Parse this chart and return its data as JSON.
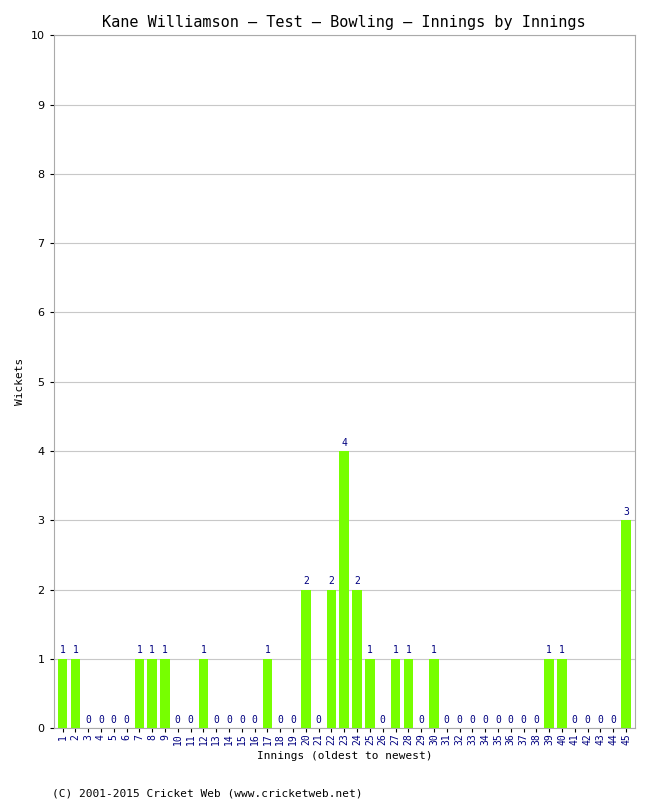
{
  "title": "Kane Williamson – Test – Bowling – Innings by Innings",
  "xlabel": "Innings (oldest to newest)",
  "ylabel": "Wickets",
  "footer": "(C) 2001-2015 Cricket Web (www.cricketweb.net)",
  "ylim": [
    0,
    10
  ],
  "yticks": [
    0,
    1,
    2,
    3,
    4,
    5,
    6,
    7,
    8,
    9,
    10
  ],
  "innings": [
    1,
    2,
    3,
    4,
    5,
    6,
    7,
    8,
    9,
    10,
    11,
    12,
    13,
    14,
    15,
    16,
    17,
    18,
    19,
    20,
    21,
    22,
    23,
    24,
    25,
    26,
    27,
    28,
    29,
    30,
    31,
    32,
    33,
    34,
    35,
    36,
    37,
    38,
    39,
    40,
    41,
    42,
    43,
    44,
    45
  ],
  "wickets": [
    1,
    1,
    0,
    0,
    0,
    0,
    1,
    1,
    1,
    0,
    0,
    1,
    0,
    0,
    0,
    0,
    1,
    0,
    0,
    2,
    0,
    2,
    4,
    2,
    1,
    0,
    1,
    1,
    0,
    1,
    0,
    0,
    0,
    0,
    0,
    0,
    0,
    0,
    1,
    1,
    0,
    0,
    0,
    0,
    3
  ],
  "bar_color": "#77ff00",
  "label_color": "#000080",
  "bg_color": "#ffffff",
  "grid_color": "#c8c8c8",
  "title_fontsize": 11,
  "axis_fontsize": 8,
  "label_fontsize": 7,
  "footer_fontsize": 8
}
